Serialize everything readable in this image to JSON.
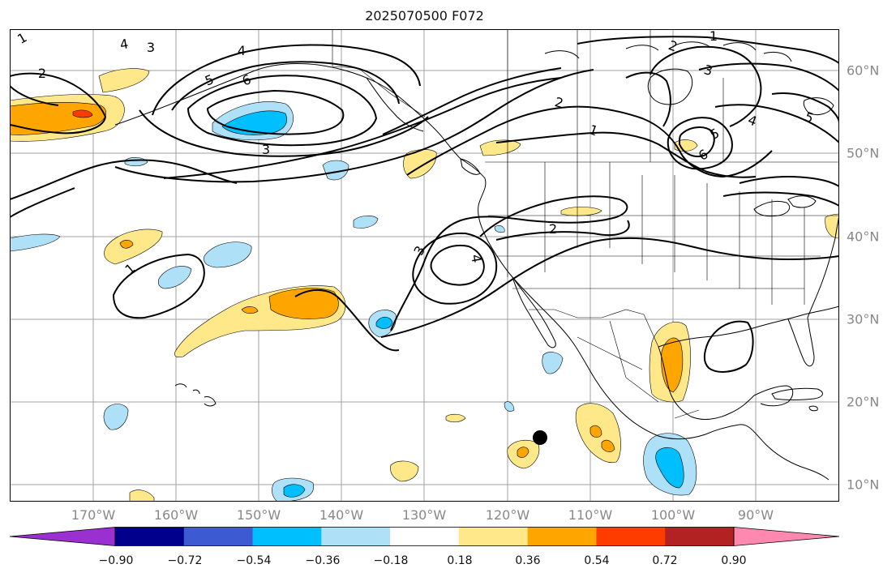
{
  "title": "2025070500 F072",
  "map": {
    "longitude_labels": [
      "170°W",
      "160°W",
      "150°W",
      "140°W",
      "130°W",
      "120°W",
      "110°W",
      "100°W",
      "90°W"
    ],
    "latitude_labels": [
      "60°N",
      "50°N",
      "40°N",
      "30°N",
      "20°N",
      "10°N"
    ],
    "contour_labels": [
      "1",
      "2",
      "3",
      "4",
      "5",
      "6",
      "1",
      "2",
      "3",
      "4",
      "5",
      "6",
      "1",
      "2",
      "3",
      "4",
      "1",
      "2",
      "3",
      "4",
      "5"
    ],
    "marker": "black-dot",
    "colors": {
      "coast": "#000000",
      "contour": "#000000",
      "gridline": "#a0a0a0",
      "ocean_land": "#ffffff"
    }
  },
  "colorbar": {
    "tick_labels": [
      "−0.90",
      "−0.72",
      "−0.54",
      "−0.36",
      "−0.18",
      "0.18",
      "0.36",
      "0.54",
      "0.72",
      "0.90"
    ],
    "bins": [
      {
        "color": "#9a30d0"
      },
      {
        "color": "#00008c"
      },
      {
        "color": "#3c5ad2"
      },
      {
        "color": "#00bfff"
      },
      {
        "color": "#aee0f8"
      },
      {
        "color": "#ffffff"
      },
      {
        "color": "#ffe88a"
      },
      {
        "color": "#ffa500"
      },
      {
        "color": "#ff3c00"
      },
      {
        "color": "#b22222"
      },
      {
        "color": "#ff88b0"
      }
    ]
  }
}
